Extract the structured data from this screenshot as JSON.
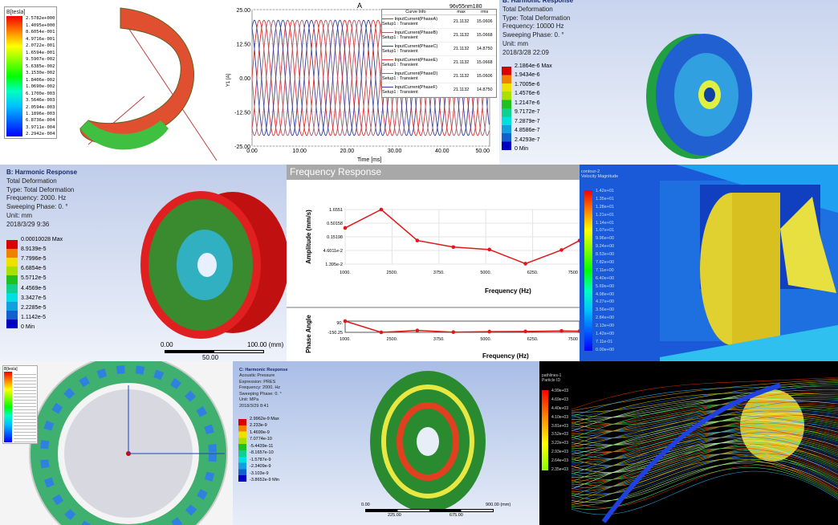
{
  "panel_coil": {
    "legend_title": "B[tesla]",
    "legend_values": [
      "2.5782e+000",
      "1.4095e+000",
      "8.6054e-001",
      "4.9716e-001",
      "2.0722e-001",
      "1.6594e-001",
      "9.5907e-002",
      "5.6385e-002",
      "3.1530e-002",
      "1.8406e-002",
      "1.0690e-002",
      "6.1700e-003",
      "3.5646e-003",
      "2.0594e-003",
      "1.1896e-003",
      "6.8736e-004",
      "3.9711e-004",
      "2.2942e-004"
    ]
  },
  "panel_current": {
    "title": "A",
    "design": "96v55nm180",
    "ylabel": "Y1 [A]",
    "xlabel": "Time [ms]",
    "legend_headers": [
      "Curve Info",
      "max",
      "rms"
    ],
    "legend_rows": [
      {
        "name": "InputCurrent(PhaseA)",
        "setup": "Setup1 : Transient",
        "max": "21.1132",
        "rms": "15.0606",
        "color": "#e03030"
      },
      {
        "name": "InputCurrent(PhaseB)",
        "setup": "Setup1 : Transient",
        "max": "21.1132",
        "rms": "15.0668",
        "color": "#a06070"
      },
      {
        "name": "InputCurrent(PhaseC)",
        "setup": "Setup1 : Transient",
        "max": "21.1132",
        "rms": "14.8750",
        "color": "#3040a0"
      },
      {
        "name": "InputCurrent(PhaseE)",
        "setup": "Setup1 : Transient",
        "max": "21.1132",
        "rms": "15.0668",
        "color": "#e03030"
      },
      {
        "name": "InputCurrent(PhaseD)",
        "setup": "Setup1 : Transient",
        "max": "21.1132",
        "rms": "15.0606",
        "color": "#a06070"
      },
      {
        "name": "InputCurrent(PhaseF)",
        "setup": "Setup1 : Transient",
        "max": "21.1132",
        "rms": "14.8750",
        "color": "#3040a0"
      }
    ]
  },
  "panel_wheel_top": {
    "lines": [
      "B: Harmonic Response",
      "Total Deformation",
      "Type: Total Deformation",
      "Frequency: 10000 Hz",
      "Sweeping Phase: 0. °",
      "Unit: mm",
      "2018/3/28 22:09"
    ],
    "legend_values": [
      "2.1864e-6 Max",
      "1.9434e-6",
      "1.7005e-6",
      "1.4576e-6",
      "1.2147e-6",
      "9.7172e-7",
      "7.2879e-7",
      "4.8586e-7",
      "2.4293e-7",
      "0 Min"
    ]
  },
  "panel_wheel_red": {
    "lines": [
      "B: Harmonic Response",
      "Total Deformation",
      "Type: Total Deformation",
      "Frequency: 2000. Hz",
      "Sweeping Phase: 0. °",
      "Unit: mm",
      "2018/3/29 9:36"
    ],
    "legend_values": [
      "0.00010028 Max",
      "8.9139e-5",
      "7.7996e-5",
      "6.6854e-5",
      "5.5712e-5",
      "4.4569e-5",
      "3.3427e-5",
      "2.2285e-5",
      "1.1142e-5",
      "0 Min"
    ],
    "scale": {
      "left": "0.00",
      "right": "100.00 (mm)",
      "mid": "50.00"
    }
  },
  "panel_cfd": {
    "title": [
      "contour-2",
      "Velocity Magnitude"
    ],
    "legend_values": [
      "1.42e+01",
      "1.35e+01",
      "1.28e+01",
      "1.21e+01",
      "1.14e+01",
      "1.07e+01",
      "9.96e+00",
      "9.24e+00",
      "8.53e+00",
      "7.82e+00",
      "7.11e+00",
      "6.40e+00",
      "5.69e+00",
      "4.98e+00",
      "4.27e+00",
      "3.56e+00",
      "2.84e+00",
      "2.13e+00",
      "1.42e+00",
      "7.11e-01",
      "0.00e+00"
    ]
  },
  "panel_ring": {
    "legend_title": "B[tesla]"
  },
  "panel_disc": {
    "lines": [
      "C: Harmonic Response",
      "Acoustic Pressure",
      "Expression: PRES",
      "Frequency: 2000. Hz",
      "Sweeping Phase: 0. °",
      "Unit: MPa",
      "2018/3/29 8:41"
    ],
    "legend_values": [
      "2.9962e-9 Max",
      "2.233e-9",
      "1.4699e-9",
      "7.0774e-10",
      "-5.4439e-11",
      "-8.1657e-10",
      "-1.5787e-9",
      "-2.3409e-9",
      "-3.103e-9",
      "-3.8652e-9 Min"
    ],
    "scale": {
      "left": "0.00",
      "right": "900.00 (mm)",
      "a": "225.00",
      "b": "675.00"
    }
  },
  "panel_stream": {
    "title": [
      "pathlines-1",
      "Particle ID"
    ],
    "legend_values": [
      "4.99e+03",
      "4.69e+03",
      "4.40e+03",
      "4.10e+03",
      "3.81e+03",
      "3.52e+03",
      "3.22e+03",
      "2.93e+03",
      "2.64e+03",
      "2.35e+03"
    ]
  },
  "chart_data": [
    {
      "type": "line",
      "title": "A",
      "xlabel": "Time [ms]",
      "ylabel": "Y1 [A]",
      "xlim": [
        0,
        50
      ],
      "ylim": [
        -25,
        25
      ],
      "xticks": [
        "0.00",
        "10.00",
        "20.00",
        "30.00",
        "40.00",
        "50.00"
      ],
      "yticks": [
        "25.00",
        "12.50",
        "0.00",
        "-12.50",
        "-25.00"
      ],
      "series": [
        {
          "name": "InputCurrent(PhaseA)",
          "amplitude": 21.1132,
          "period_ms": 6,
          "phase_deg": 0
        },
        {
          "name": "InputCurrent(PhaseB)",
          "amplitude": 21.1132,
          "period_ms": 6,
          "phase_deg": -120
        },
        {
          "name": "InputCurrent(PhaseC)",
          "amplitude": 21.1132,
          "period_ms": 6,
          "phase_deg": -240
        },
        {
          "name": "InputCurrent(PhaseE)",
          "amplitude": 21.1132,
          "period_ms": 6,
          "phase_deg": -60
        },
        {
          "name": "InputCurrent(PhaseD)",
          "amplitude": 21.1132,
          "period_ms": 6,
          "phase_deg": -180
        },
        {
          "name": "InputCurrent(PhaseF)",
          "amplitude": 21.1132,
          "period_ms": 6,
          "phase_deg": -300
        }
      ],
      "grid": true
    },
    {
      "type": "line",
      "title": "Frequency Response",
      "xlabel": "Frequency (Hz)",
      "ylabel": "Amplitude (mm/s)",
      "yscale": "log",
      "xticks": [
        "1000.",
        "2500.",
        "3750.",
        "5000.",
        "6250.",
        "7500"
      ],
      "yticks": [
        "1.6551",
        "0.50158",
        "0.15198",
        "4.6011e-2",
        "1.395e-2"
      ],
      "x": [
        1000,
        2000,
        3000,
        4000,
        5000,
        6000,
        7000,
        7500
      ],
      "y": [
        0.33,
        1.6551,
        0.11,
        0.062,
        0.05,
        0.0145,
        0.048,
        0.11
      ],
      "grid": true
    },
    {
      "type": "line",
      "xlabel": "Frequency (Hz)",
      "ylabel": "Phase Angle",
      "xticks": [
        "1000.",
        "2500.",
        "3750.",
        "5000.",
        "6250.",
        "7500"
      ],
      "yticks": [
        "90.",
        "-150.25"
      ],
      "x": [
        1000,
        2000,
        3000,
        4000,
        5000,
        6000,
        7000,
        7500
      ],
      "y": [
        90,
        -150,
        -110,
        -145,
        -135,
        -130,
        -120,
        -125
      ]
    }
  ]
}
